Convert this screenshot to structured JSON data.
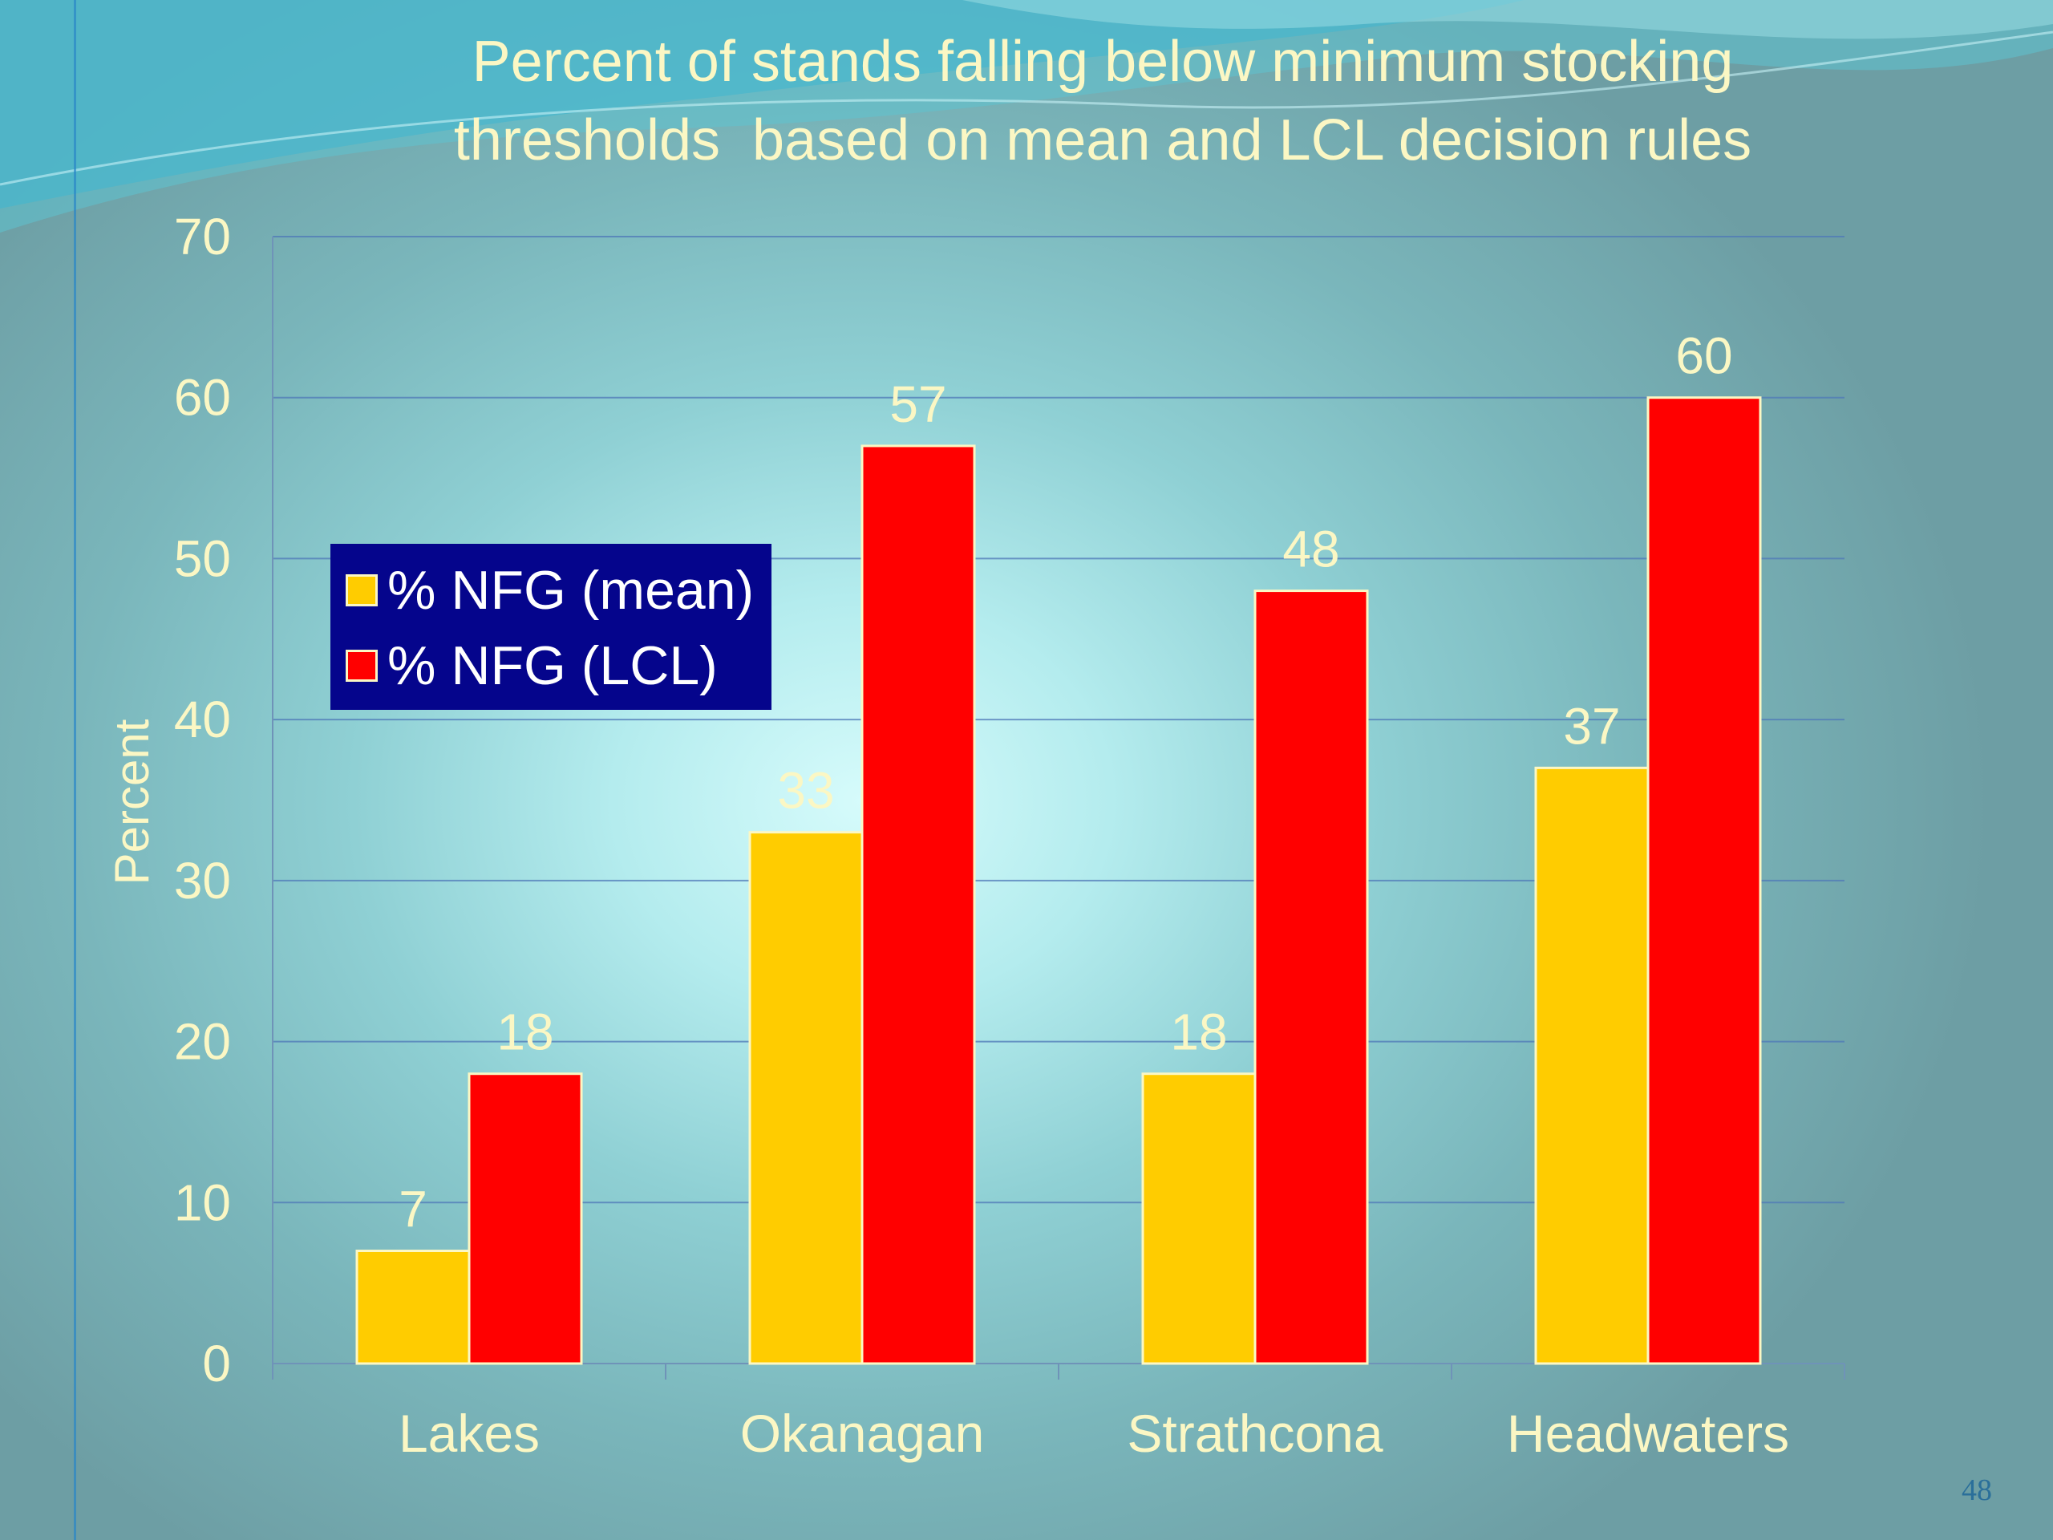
{
  "slide": {
    "page_number": "48"
  },
  "chart_data": {
    "type": "bar",
    "title": [
      "Percent of stands falling below minimum stocking",
      "thresholds  based on mean and LCL decision rules"
    ],
    "xlabel": "",
    "ylabel": "Percent",
    "ylim": [
      0,
      70
    ],
    "yticks": [
      0,
      10,
      20,
      30,
      40,
      50,
      60,
      70
    ],
    "categories": [
      "Lakes",
      "Okanagan",
      "Strathcona",
      "Headwaters"
    ],
    "series": [
      {
        "name": "% NFG (mean)",
        "color": "#ffcc00",
        "values": [
          7,
          33,
          18,
          37
        ]
      },
      {
        "name": "% NFG (LCL)",
        "color": "#ff0000",
        "values": [
          18,
          57,
          48,
          60
        ]
      }
    ],
    "grid": true,
    "legend": "upper-left inside plot",
    "data_labels": true
  }
}
